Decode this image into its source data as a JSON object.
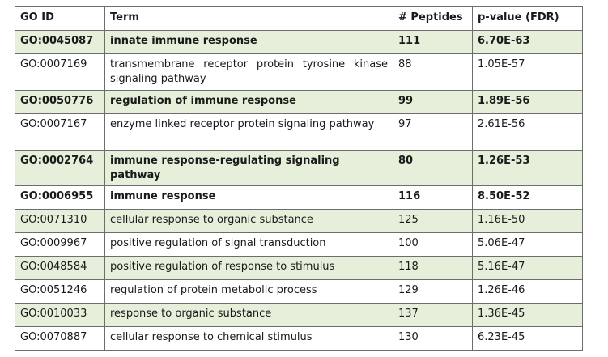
{
  "headers": [
    "GO ID",
    "Term",
    "# Peptides",
    "p-value (FDR)"
  ],
  "rows": [
    {
      "go_id": "GO:0045087",
      "term": "innate immune response",
      "peptides": "111",
      "pvalue": "6.70E-63",
      "bold": true,
      "shaded": true
    },
    {
      "go_id": "GO:0007169",
      "term": "transmembrane receptor protein tyrosine kinase signaling pathway",
      "peptides": "88",
      "pvalue": "1.05E-57",
      "bold": false,
      "shaded": false
    },
    {
      "go_id": "GO:0050776",
      "term": "regulation of immune response",
      "peptides": "99",
      "pvalue": "1.89E-56",
      "bold": true,
      "shaded": true
    },
    {
      "go_id": "GO:0007167",
      "term": "enzyme linked receptor protein signaling pathway",
      "peptides": "97",
      "pvalue": "2.61E-56",
      "bold": false,
      "shaded": false
    },
    {
      "go_id": "GO:0002764",
      "term": "immune response-regulating signaling pathway",
      "peptides": "80",
      "pvalue": "1.26E-53",
      "bold": true,
      "shaded": true
    },
    {
      "go_id": "GO:0006955",
      "term": "immune response",
      "peptides": "116",
      "pvalue": "8.50E-52",
      "bold": true,
      "shaded": false
    },
    {
      "go_id": "GO:0071310",
      "term": "cellular response to organic substance",
      "peptides": "125",
      "pvalue": "1.16E-50",
      "bold": false,
      "shaded": true
    },
    {
      "go_id": "GO:0009967",
      "term": "positive regulation of signal transduction",
      "peptides": "100",
      "pvalue": "5.06E-47",
      "bold": false,
      "shaded": false
    },
    {
      "go_id": "GO:0048584",
      "term": "positive regulation of response to stimulus",
      "peptides": "118",
      "pvalue": "5.16E-47",
      "bold": false,
      "shaded": true
    },
    {
      "go_id": "GO:0051246",
      "term": "regulation of protein metabolic process",
      "peptides": "129",
      "pvalue": "1.26E-46",
      "bold": false,
      "shaded": false
    },
    {
      "go_id": "GO:0010033",
      "term": "response to organic substance",
      "peptides": "137",
      "pvalue": "1.36E-45",
      "bold": false,
      "shaded": true
    },
    {
      "go_id": "GO:0070887",
      "term": "cellular response to chemical stimulus",
      "peptides": "130",
      "pvalue": "6.23E-45",
      "bold": false,
      "shaded": false
    }
  ]
}
